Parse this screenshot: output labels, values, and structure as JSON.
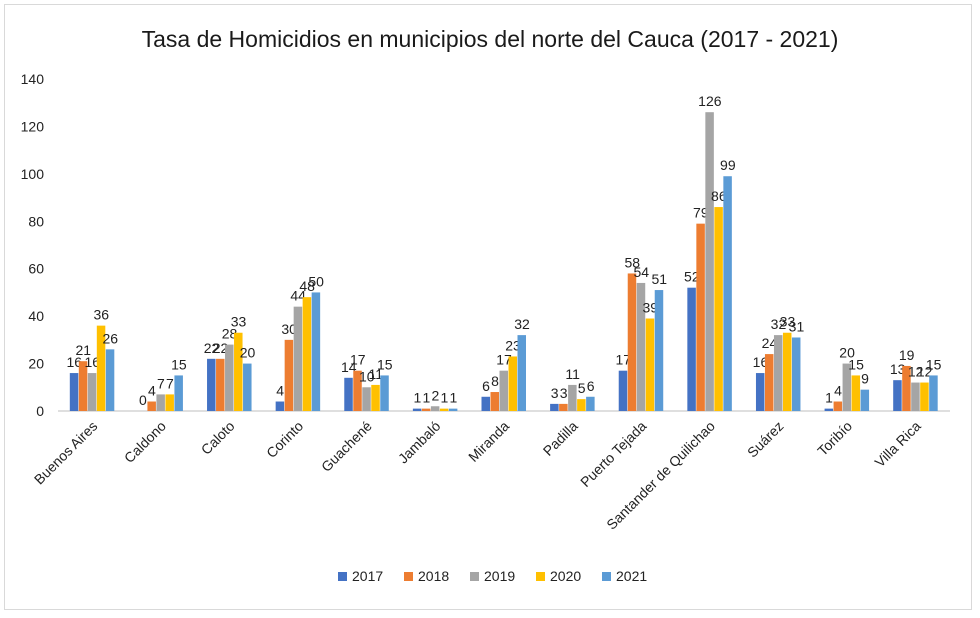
{
  "chart_data": {
    "type": "bar",
    "title": "Tasa de Homicidios en municipios del norte del Cauca (2017 - 2021)",
    "xlabel": "",
    "ylabel": "",
    "ylim": [
      0,
      140
    ],
    "yticks": [
      0,
      20,
      40,
      60,
      80,
      100,
      120,
      140
    ],
    "yticks_text": [
      "0",
      "20",
      "40",
      "60",
      "80",
      "100",
      "120",
      "140"
    ],
    "grid": false,
    "legend_position": "bottom",
    "categories": [
      "Buenos Aires",
      "Caldono",
      "Caloto",
      "Corinto",
      "Guachené",
      "Jambaló",
      "Miranda",
      "Padilla",
      "Puerto Tejada",
      "Santander de Quilichao",
      "Suárez",
      "Toribío",
      "Villa Rica"
    ],
    "series": [
      {
        "name": "2017",
        "color": "#4472c4",
        "values": [
          16,
          0,
          22,
          4,
          14,
          1,
          6,
          3,
          17,
          52,
          16,
          1,
          13
        ]
      },
      {
        "name": "2018",
        "color": "#ed7d31",
        "values": [
          21,
          4,
          22,
          30,
          17,
          1,
          8,
          3,
          58,
          79,
          24,
          4,
          19
        ]
      },
      {
        "name": "2019",
        "color": "#a5a5a5",
        "values": [
          16,
          7,
          28,
          44,
          10,
          2,
          17,
          11,
          54,
          126,
          32,
          20,
          12
        ]
      },
      {
        "name": "2020",
        "color": "#ffc000",
        "values": [
          36,
          7,
          33,
          48,
          11,
          1,
          23,
          5,
          39,
          86,
          33,
          15,
          12
        ]
      },
      {
        "name": "2021",
        "color": "#5b9bd5",
        "values": [
          26,
          15,
          20,
          50,
          15,
          1,
          32,
          6,
          51,
          99,
          31,
          9,
          15
        ]
      }
    ]
  }
}
